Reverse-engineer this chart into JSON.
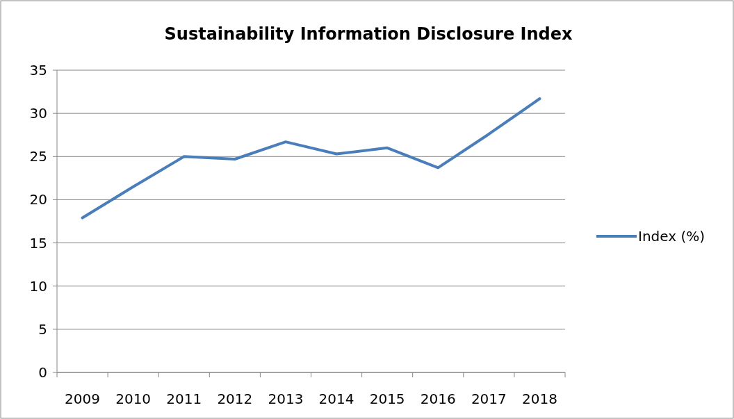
{
  "chart_data": {
    "type": "line",
    "title": "Sustainability Information Disclosure Index",
    "categories": [
      "2009",
      "2010",
      "2011",
      "2012",
      "2013",
      "2014",
      "2015",
      "2016",
      "2017",
      "2018"
    ],
    "series": [
      {
        "name": "Index (%)",
        "color": "#4a7ebb",
        "values": [
          17.9,
          21.5,
          25.0,
          24.7,
          26.7,
          25.3,
          26.0,
          23.7,
          27.6,
          31.7
        ]
      }
    ],
    "ylim": [
      0,
      35
    ],
    "yticks": [
      0,
      5,
      10,
      15,
      20,
      25,
      30,
      35
    ],
    "grid": "y",
    "legend": "right",
    "marker": "none",
    "line_style": "solid"
  }
}
